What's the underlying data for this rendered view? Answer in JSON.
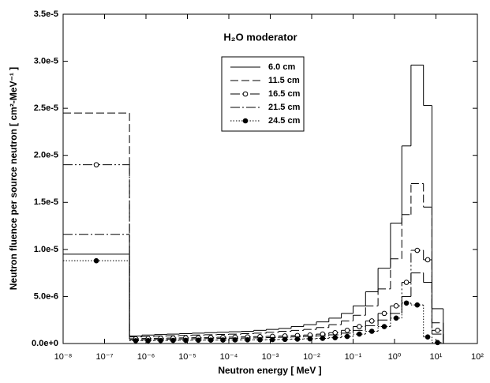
{
  "chart_data": {
    "type": "histogram",
    "title": "H₂O moderator",
    "x_label": "Neutron energy  [ MeV ]",
    "y_label": "Neutron fluence per source neutron  [ cm²-MeV⁻¹ ]",
    "x_log": true,
    "xlim": [
      1e-08,
      100
    ],
    "ylim": [
      0,
      3.5e-05
    ],
    "xticks": [
      {
        "value": 1e-08,
        "label": "10⁻⁸"
      },
      {
        "value": 1e-07,
        "label": "10⁻⁷"
      },
      {
        "value": 1e-06,
        "label": "10⁻⁶"
      },
      {
        "value": 1e-05,
        "label": "10⁻⁵"
      },
      {
        "value": 0.0001,
        "label": "10⁻⁴"
      },
      {
        "value": 0.001,
        "label": "10⁻³"
      },
      {
        "value": 0.01,
        "label": "10⁻²"
      },
      {
        "value": 0.1,
        "label": "10⁻¹"
      },
      {
        "value": 1,
        "label": "10⁰"
      },
      {
        "value": 10,
        "label": "10¹"
      },
      {
        "value": 100,
        "label": "10²"
      }
    ],
    "yticks": [
      {
        "value": 0,
        "label": "0.0e+0"
      },
      {
        "value": 5e-06,
        "label": "5.0e-6"
      },
      {
        "value": 1e-05,
        "label": "1.0e-5"
      },
      {
        "value": 1.5e-05,
        "label": "1.5e-5"
      },
      {
        "value": 2e-05,
        "label": "2.0e-5"
      },
      {
        "value": 2.5e-05,
        "label": "2.5e-5"
      },
      {
        "value": 3e-05,
        "label": "3.0e-5"
      },
      {
        "value": 3.5e-05,
        "label": "3.5e-5"
      }
    ],
    "bins": [
      1e-08,
      4e-07,
      8e-07,
      1.6e-06,
      3.2e-06,
      6.4e-06,
      1.3e-05,
      2.6e-05,
      5.2e-05,
      0.0001,
      0.0002,
      0.0004,
      0.0008,
      0.0016,
      0.0032,
      0.0064,
      0.013,
      0.026,
      0.052,
      0.1,
      0.2,
      0.4,
      0.8,
      1.5,
      2.5,
      5,
      8,
      15
    ],
    "series": [
      {
        "name": "6.0 cm",
        "color": "#000000",
        "dash": "none",
        "marker": "none",
        "values": [
          9.5e-06,
          8e-07,
          9e-07,
          9.5e-07,
          1e-06,
          1.05e-06,
          1.1e-06,
          1.15e-06,
          1.2e-06,
          1.25e-06,
          1.3e-06,
          1.4e-06,
          1.5e-06,
          1.6e-06,
          1.8e-06,
          2e-06,
          2.3e-06,
          2.7e-06,
          3.2e-06,
          4e-06,
          5.5e-06,
          8e-06,
          1.28e-05,
          2.1e-05,
          2.96e-05,
          2.53e-05,
          3.7e-06
        ]
      },
      {
        "name": "11.5 cm",
        "color": "#000000",
        "dash": "10,4",
        "marker": "none",
        "values": [
          2.45e-05,
          7e-07,
          7.5e-07,
          8e-07,
          8.3e-07,
          8.6e-07,
          9e-07,
          9.3e-07,
          9.6e-07,
          1e-06,
          1.05e-06,
          1.1e-06,
          1.2e-06,
          1.3e-06,
          1.4e-06,
          1.5e-06,
          1.7e-06,
          2e-06,
          2.4e-06,
          3e-06,
          4e-06,
          5.8e-06,
          9e-06,
          1.37e-05,
          1.7e-05,
          1.45e-05,
          2.2e-06
        ]
      },
      {
        "name": "16.5 cm",
        "color": "#000000",
        "dash": "12,3,2,3,2,3",
        "marker": "open",
        "values": [
          1.9e-05,
          5e-07,
          5.3e-07,
          5.6e-07,
          5.8e-07,
          6e-07,
          6.2e-07,
          6.4e-07,
          6.6e-07,
          6.8e-07,
          7e-07,
          7.3e-07,
          7.6e-07,
          8e-07,
          8.5e-07,
          9e-07,
          1e-06,
          1.15e-06,
          1.4e-06,
          1.8e-06,
          2.4e-06,
          3.2e-06,
          4e-06,
          6.5e-06,
          9.9e-06,
          8.9e-06,
          1.4e-06
        ]
      },
      {
        "name": "21.5 cm",
        "color": "#000000",
        "dash": "12,3,2,3",
        "marker": "none",
        "values": [
          1.16e-05,
          4e-07,
          4.2e-07,
          4.4e-07,
          4.6e-07,
          4.8e-07,
          5e-07,
          5.2e-07,
          5.4e-07,
          5.6e-07,
          5.8e-07,
          6e-07,
          6.3e-07,
          6.6e-07,
          7e-07,
          7.5e-07,
          8.2e-07,
          9.2e-07,
          1.1e-06,
          1.4e-06,
          1.9e-06,
          2.5e-06,
          3.2e-06,
          5e-06,
          7.5e-06,
          6.5e-06,
          1e-06
        ]
      },
      {
        "name": "24.5 cm",
        "color": "#000000",
        "dash": "1.5,2",
        "marker": "filled",
        "values": [
          8.8e-06,
          3e-07,
          3.1e-07,
          3.2e-07,
          3.3e-07,
          3.4e-07,
          3.5e-07,
          3.6e-07,
          3.7e-07,
          3.8e-07,
          3.9e-07,
          4e-07,
          4.2e-07,
          4.4e-07,
          4.7e-07,
          5e-07,
          5.5e-07,
          6.2e-07,
          7.5e-07,
          1e-06,
          1.3e-06,
          1.8e-06,
          2.7e-06,
          4.3e-06,
          4.1e-06,
          7e-07,
          1e-07
        ]
      }
    ]
  }
}
